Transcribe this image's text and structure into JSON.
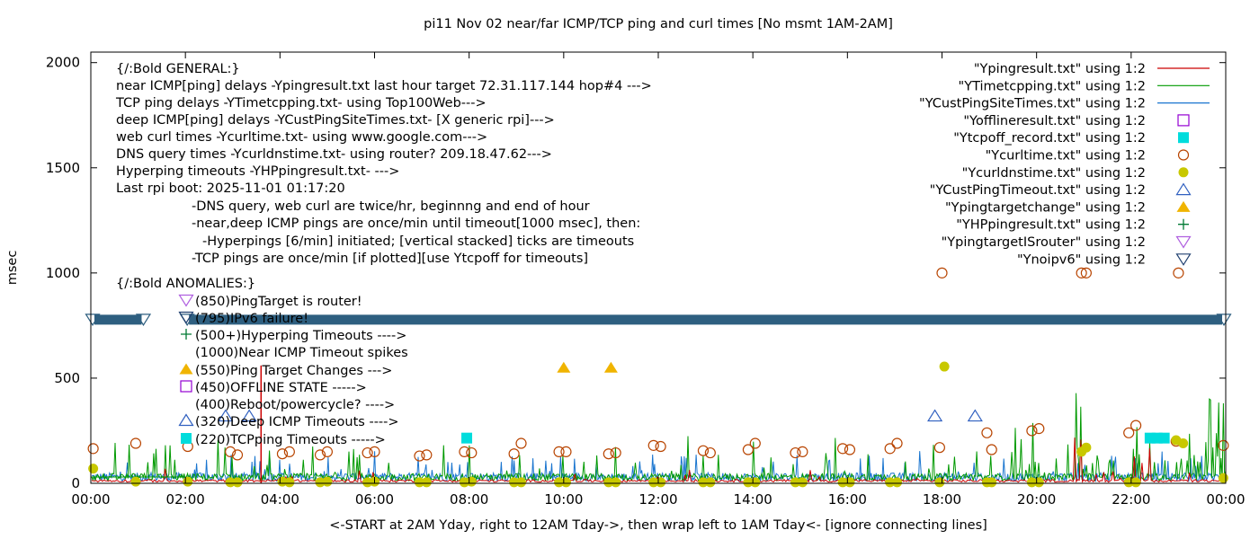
{
  "chart_data": {
    "type": "line",
    "title": "pi11 Nov 02  near/far ICMP/TCP ping and curl times [No msmt 1AM-2AM]",
    "xlabel": "<-START at 2AM Yday, right to 12AM Tday->, then wrap left to 1AM Tday<- [ignore connecting lines]",
    "ylabel": "msec",
    "xlim": [
      0,
      24
    ],
    "ylim": [
      0,
      2050
    ],
    "x_ticks": [
      "00:00",
      "02:00",
      "04:00",
      "06:00",
      "08:00",
      "10:00",
      "12:00",
      "14:00",
      "16:00",
      "18:00",
      "20:00",
      "22:00",
      "00:00"
    ],
    "y_ticks": [
      0,
      500,
      1000,
      1500,
      2000
    ],
    "y_tick_labels": [
      "0",
      "500",
      "1000",
      "1500",
      "2000"
    ],
    "grid": false,
    "legend_position": "top-right",
    "legend": [
      {
        "label": "\"Ypingresult.txt\" using 1:2",
        "style": "line",
        "color": "#cc0000"
      },
      {
        "label": "\"YTimetcpping.txt\" using 1:2",
        "style": "line",
        "color": "#009900"
      },
      {
        "label": "\"YCustPingSiteTimes.txt\" using 1:2",
        "style": "line",
        "color": "#1a75cf"
      },
      {
        "label": "\"Yofflineresult.txt\" using 1:2",
        "style": "open-square",
        "color": "#9400d3"
      },
      {
        "label": "\"Ytcpoff_record.txt\" using 1:2",
        "style": "filled-square",
        "color": "#00dcdc"
      },
      {
        "label": "\"Ycurltime.txt\" using 1:2",
        "style": "open-circle",
        "color": "#b84400"
      },
      {
        "label": "\"Ycurldnstime.txt\" using 1:2",
        "style": "filled-circle",
        "color": "#c8c800"
      },
      {
        "label": "\"YCustPingTimeout.txt\" using 1:2",
        "style": "open-triangle",
        "color": "#3060c0"
      },
      {
        "label": "\"Ypingtargetchange\" using 1:2",
        "style": "filled-triangle",
        "color": "#f0b400"
      },
      {
        "label": "\"YHPpingresult.txt\" using 1:2",
        "style": "plus",
        "color": "#007a33"
      },
      {
        "label": "\"YpingtargetISrouter\" using 1:2",
        "style": "open-down-triangle",
        "color": "#b060e0"
      },
      {
        "label": "\"Ynoipv6\" using 1:2",
        "style": "open-down-triangle",
        "color": "#204070"
      }
    ],
    "notes": [
      "{/:Bold GENERAL:}",
      "near ICMP[ping] delays -Ypingresult.txt last hour target 72.31.117.144 hop#4 --->",
      "TCP ping delays -YTimetcpping.txt- using Top100Web--->",
      "deep ICMP[ping] delays -YCustPingSiteTimes.txt- [X generic rpi]--->",
      "web curl times -Ycurltime.txt- using www.google.com--->",
      "DNS query times -Ycurldnstime.txt- using router? 209.18.47.62--->",
      "Hyperping timeouts -YHPpingresult.txt- --->",
      "Last rpi boot: 2025-11-01 01:17:20",
      "-DNS query, web curl are twice/hr, beginnng and end of hour",
      "-near,deep ICMP pings are once/min until timeout[1000 msec], then:",
      "-Hyperpings [6/min] initiated; [vertical stacked] ticks are timeouts",
      "-TCP pings are once/min [if plotted][use Ytcpoff for timeouts]",
      "{/:Bold ANOMALIES:}"
    ],
    "anomalies": [
      {
        "label": "(850)PingTarget is router!",
        "marker": "open-down-triangle",
        "color": "#b060e0"
      },
      {
        "label": "(795)IPv6 failure!",
        "marker": "open-down-triangle",
        "color": "#204070"
      },
      {
        "label": "(500+)Hyperping Timeouts ---->",
        "marker": "plus",
        "color": "#007a33"
      },
      {
        "label": "(1000)Near ICMP Timeout spikes",
        "marker": "none",
        "color": "#cc0000"
      },
      {
        "label": "(550)Ping Target Changes --->",
        "marker": "filled-triangle",
        "color": "#f0b400"
      },
      {
        "label": "(450)OFFLINE STATE ----->",
        "marker": "open-square",
        "color": "#9400d3"
      },
      {
        "label": "(400)Reboot/powercycle? ---->",
        "marker": "none",
        "color": "#000000"
      },
      {
        "label": "(320)Deep ICMP Timeouts ---->",
        "marker": "open-triangle",
        "color": "#3060c0"
      },
      {
        "label": "(220)TCPping Timeouts ----->",
        "marker": "filled-square",
        "color": "#00dcdc"
      }
    ],
    "noipv6_band": {
      "y": 780,
      "x_ranges": [
        [
          0,
          1.15
        ],
        [
          2.0,
          24
        ]
      ]
    },
    "series": [
      {
        "name": "\"Ycurltime.txt\" using 1:2",
        "marker": "open-circle",
        "color": "#b84400",
        "points": [
          [
            0.05,
            165
          ],
          [
            0.95,
            190
          ],
          [
            2.05,
            175
          ],
          [
            2.95,
            150
          ],
          [
            3.1,
            135
          ],
          [
            4.05,
            140
          ],
          [
            4.2,
            150
          ],
          [
            4.85,
            135
          ],
          [
            5.0,
            150
          ],
          [
            5.85,
            145
          ],
          [
            6.0,
            150
          ],
          [
            6.95,
            130
          ],
          [
            7.1,
            135
          ],
          [
            7.9,
            150
          ],
          [
            8.05,
            145
          ],
          [
            8.95,
            140
          ],
          [
            9.1,
            190
          ],
          [
            9.9,
            150
          ],
          [
            10.05,
            150
          ],
          [
            10.95,
            140
          ],
          [
            11.1,
            145
          ],
          [
            11.9,
            180
          ],
          [
            12.05,
            175
          ],
          [
            12.95,
            155
          ],
          [
            13.1,
            145
          ],
          [
            13.9,
            160
          ],
          [
            14.05,
            190
          ],
          [
            14.9,
            145
          ],
          [
            15.05,
            150
          ],
          [
            15.9,
            165
          ],
          [
            16.05,
            160
          ],
          [
            16.9,
            165
          ],
          [
            17.05,
            190
          ],
          [
            17.95,
            170
          ],
          [
            18.0,
            1000
          ],
          [
            18.95,
            240
          ],
          [
            19.05,
            160
          ],
          [
            19.9,
            250
          ],
          [
            20.05,
            260
          ],
          [
            20.95,
            1000
          ],
          [
            21.05,
            1000
          ],
          [
            21.95,
            240
          ],
          [
            22.1,
            275
          ],
          [
            22.95,
            200
          ],
          [
            23.0,
            1000
          ],
          [
            23.95,
            180
          ]
        ]
      },
      {
        "name": "\"Ycurldnstime.txt\" using 1:2",
        "marker": "filled-circle",
        "color": "#c8c800",
        "points": [
          [
            0.05,
            70
          ],
          [
            0.95,
            8
          ],
          [
            2.05,
            8
          ],
          [
            2.95,
            5
          ],
          [
            3.1,
            5
          ],
          [
            4.05,
            8
          ],
          [
            4.2,
            5
          ],
          [
            4.85,
            5
          ],
          [
            5.0,
            8
          ],
          [
            5.85,
            5
          ],
          [
            6.0,
            8
          ],
          [
            6.95,
            5
          ],
          [
            7.1,
            5
          ],
          [
            7.9,
            5
          ],
          [
            8.05,
            8
          ],
          [
            8.95,
            5
          ],
          [
            9.1,
            5
          ],
          [
            9.9,
            5
          ],
          [
            10.05,
            5
          ],
          [
            10.95,
            5
          ],
          [
            11.1,
            5
          ],
          [
            11.9,
            5
          ],
          [
            12.05,
            5
          ],
          [
            12.95,
            5
          ],
          [
            13.1,
            5
          ],
          [
            13.9,
            5
          ],
          [
            14.05,
            5
          ],
          [
            14.9,
            5
          ],
          [
            15.05,
            5
          ],
          [
            15.9,
            5
          ],
          [
            16.05,
            5
          ],
          [
            16.9,
            5
          ],
          [
            17.05,
            5
          ],
          [
            17.95,
            5
          ],
          [
            18.05,
            555
          ],
          [
            18.95,
            5
          ],
          [
            19.05,
            5
          ],
          [
            19.9,
            5
          ],
          [
            20.05,
            5
          ],
          [
            20.95,
            150
          ],
          [
            21.05,
            170
          ],
          [
            21.95,
            5
          ],
          [
            22.1,
            5
          ],
          [
            22.95,
            205
          ],
          [
            23.1,
            190
          ],
          [
            23.95,
            25
          ]
        ]
      },
      {
        "name": "\"YCustPingTimeout.txt\" using 1:2",
        "marker": "open-triangle",
        "color": "#3060c0",
        "points": [
          [
            2.85,
            320
          ],
          [
            3.35,
            320
          ],
          [
            17.85,
            320
          ],
          [
            18.7,
            320
          ]
        ]
      },
      {
        "name": "\"Ypingtargetchange\" using 1:2",
        "marker": "filled-triangle",
        "color": "#f0b400",
        "points": [
          [
            10.0,
            550
          ],
          [
            11.0,
            550
          ]
        ]
      },
      {
        "name": "\"Ytcpoff_record.txt\" using 1:2",
        "marker": "filled-square",
        "color": "#00dcdc",
        "points": [
          [
            7.95,
            215
          ],
          [
            22.4,
            215
          ],
          [
            22.55,
            215
          ],
          [
            22.7,
            215
          ]
        ]
      }
    ]
  }
}
